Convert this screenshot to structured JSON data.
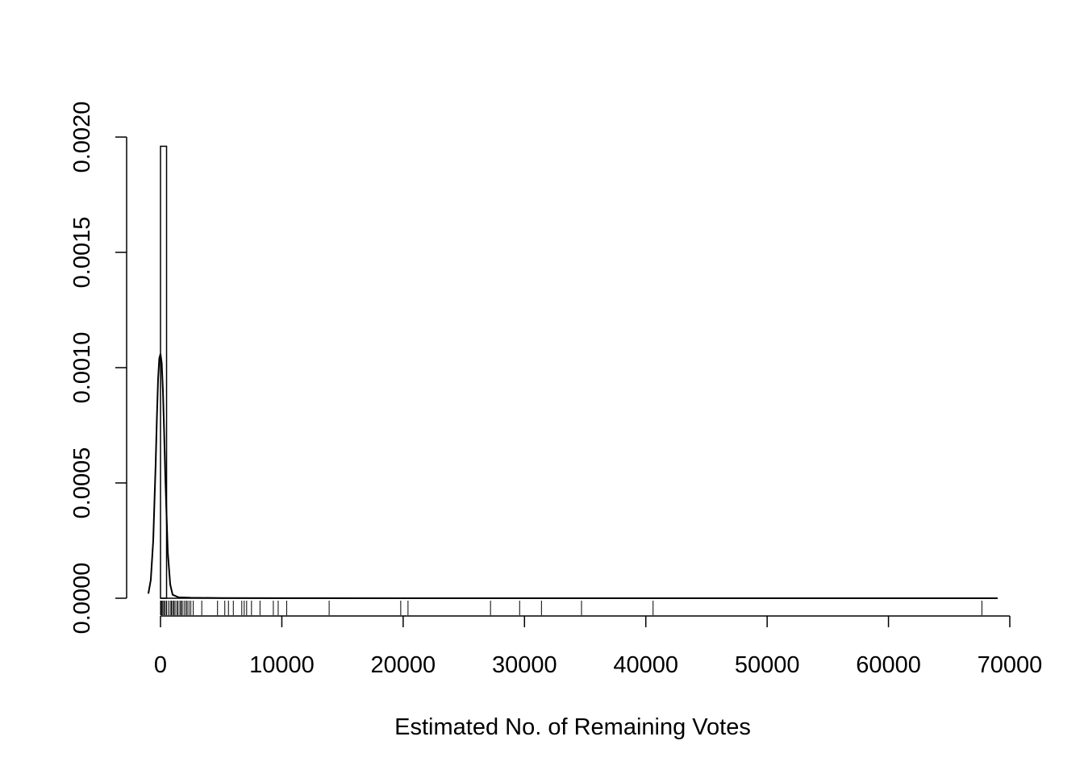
{
  "chart_data": {
    "type": "histogram",
    "title": "",
    "xlabel": "Estimated No. of Remaining Votes",
    "ylabel": "",
    "xlim": [
      0,
      70000
    ],
    "ylim": [
      0,
      0.002
    ],
    "x_ticks": [
      0,
      10000,
      20000,
      30000,
      40000,
      50000,
      60000,
      70000
    ],
    "x_tick_labels": [
      "0",
      "10000",
      "20000",
      "30000",
      "40000",
      "50000",
      "60000",
      "70000"
    ],
    "y_ticks": [
      0,
      0.0005,
      0.001,
      0.0015,
      0.002
    ],
    "y_tick_labels": [
      "0.0000",
      "0.0005",
      "0.0010",
      "0.0015",
      "0.0020"
    ],
    "histogram": {
      "bins": [
        {
          "x0": 0,
          "x1": 500,
          "density": 0.00196
        }
      ]
    },
    "density_curve": {
      "x": [
        -1000,
        -800,
        -600,
        -400,
        -300,
        -200,
        -100,
        0,
        100,
        200,
        300,
        400,
        600,
        800,
        1000,
        1500,
        2500,
        5000,
        10000,
        20000,
        40000,
        60000,
        69000
      ],
      "y": [
        2e-05,
        8e-05,
        0.00025,
        0.00058,
        0.00078,
        0.00095,
        0.00104,
        0.00106,
        0.00102,
        0.0009,
        0.00072,
        0.00052,
        0.0002,
        6e-05,
        1.5e-05,
        4e-06,
        2e-06,
        1e-06,
        5e-07,
        2e-07,
        1e-07,
        1e-07,
        0.0
      ]
    },
    "rug": [
      0,
      50,
      120,
      200,
      300,
      400,
      500,
      650,
      800,
      900,
      1000,
      1100,
      1200,
      1350,
      1450,
      1600,
      1700,
      1800,
      1950,
      2100,
      2200,
      2350,
      2500,
      2700,
      3400,
      4700,
      5300,
      5600,
      6000,
      6700,
      6900,
      7100,
      7500,
      8200,
      9300,
      9700,
      10400,
      13900,
      19800,
      20400,
      27200,
      29600,
      31400,
      34700,
      40600,
      67700
    ]
  }
}
